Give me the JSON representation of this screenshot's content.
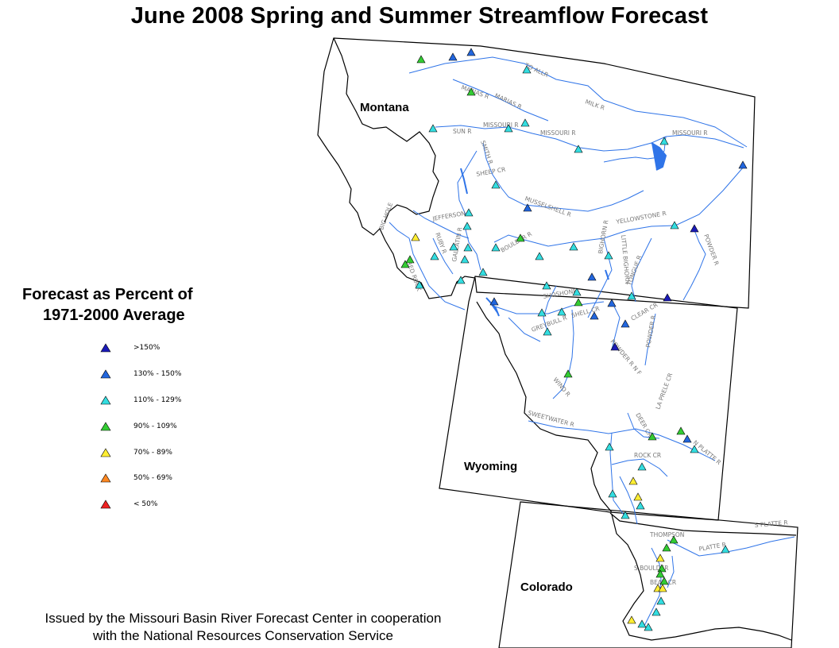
{
  "title": "June 2008 Spring and Summer Streamflow Forecast",
  "states": {
    "montana": "Montana",
    "wyoming": "Wyoming",
    "colorado": "Colorado"
  },
  "legend": {
    "title_line1": "Forecast as Percent of",
    "title_line2": "1971-2000 Average",
    "items": [
      {
        "label": ">150%",
        "color": "#1a1ab8"
      },
      {
        "label": "130% - 150%",
        "color": "#2266dd"
      },
      {
        "label": "110% - 129%",
        "color": "#33dde0"
      },
      {
        "label": "90% - 109%",
        "color": "#33cc33"
      },
      {
        "label": "70% - 89%",
        "color": "#ffee33"
      },
      {
        "label": "50% - 69%",
        "color": "#ff8822"
      },
      {
        "label": "< 50%",
        "color": "#ee2222"
      }
    ]
  },
  "river_labels": [
    "TO ALLR",
    "MARIAS R",
    "MARIAS R",
    "MILK R",
    "MISSOURI R",
    "MISSOURI R",
    "MISSOURI R",
    "SUN R",
    "SMITH R",
    "SHEEP CR",
    "MUSSELSHELL R",
    "JEFFERSON R",
    "BIG HOLE",
    "RUBY R",
    "GALLATIN R",
    "BOULDER R",
    "YELLOWSTONE R",
    "POWDER R",
    "BIGHORN R",
    "LITTLE BIGHORN",
    "TONGUE R",
    "SHOSHONE",
    "GREYBULL R",
    "SHELL CR",
    "CLEAR CR",
    "POWDER R",
    "POWDER R N F",
    "WIND R",
    "SWEETWATER R",
    "DEER CR",
    "LA PRELE CR",
    "N PLATTE R",
    "ROCK CR",
    "THOMPSON",
    "PLATTE R",
    "S PLATTE R",
    "S BOULDER",
    "BEAR CR",
    "RED ROCK"
  ],
  "footer": {
    "line1": "Issued by the Missouri Basin River Forecast Center in cooperation",
    "line2": "with the National Resources Conservation Service"
  }
}
